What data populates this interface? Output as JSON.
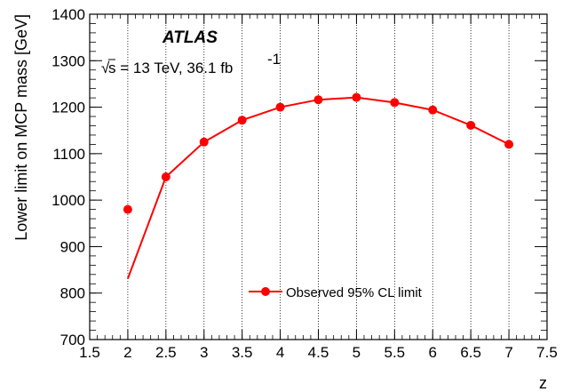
{
  "chart_data": {
    "type": "line",
    "title": "",
    "xlabel": "z",
    "ylabel": "Lower limit on MCP mass [GeV]",
    "xlim": [
      1.5,
      7.5
    ],
    "ylim": [
      700,
      1400
    ],
    "x_ticks": [
      "1.5",
      "2",
      "2.5",
      "3",
      "3.5",
      "4",
      "4.5",
      "5",
      "5.5",
      "6",
      "6.5",
      "7",
      "7.5"
    ],
    "y_ticks": [
      "700",
      "800",
      "900",
      "1000",
      "1100",
      "1200",
      "1300",
      "1400"
    ],
    "grid": "vertical dotted lines at x ticks",
    "legend_position": "bottom-center",
    "series": [
      {
        "name": "Observed 95% CL limit",
        "color": "#ff0000",
        "points": [
          {
            "x": 2.0,
            "y": 980
          },
          {
            "x": 2.5,
            "y": 1050
          },
          {
            "x": 3.0,
            "y": 1125
          },
          {
            "x": 3.5,
            "y": 1172
          },
          {
            "x": 4.0,
            "y": 1200
          },
          {
            "x": 4.5,
            "y": 1216
          },
          {
            "x": 5.0,
            "y": 1221
          },
          {
            "x": 5.5,
            "y": 1210
          },
          {
            "x": 6.0,
            "y": 1194
          },
          {
            "x": 6.5,
            "y": 1161
          },
          {
            "x": 7.0,
            "y": 1120
          }
        ],
        "line_start": {
          "x": 2.0,
          "y": 831
        }
      }
    ],
    "annotations": {
      "experiment": "ATLAS",
      "sqrt_symbol": "√",
      "energy_text": "s = 13 TeV, 36.1 fb",
      "lumi_exponent": "-1"
    }
  }
}
